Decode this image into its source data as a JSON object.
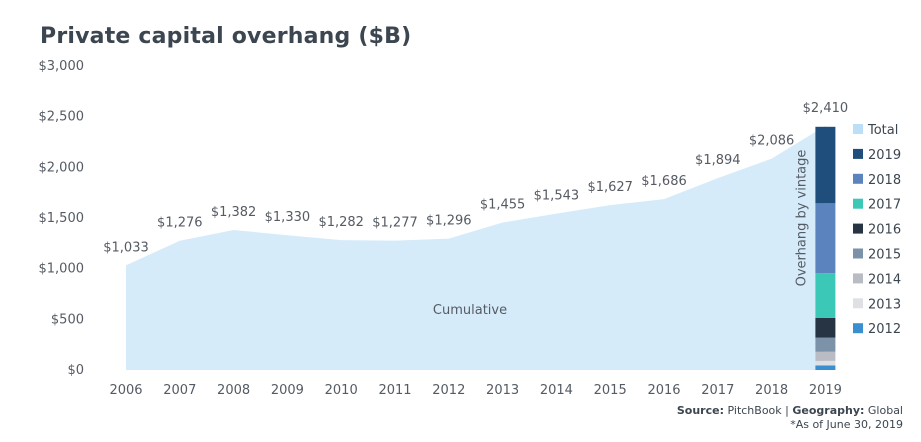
{
  "chart_data": {
    "type": "area",
    "title": "Private capital overhang ($B)",
    "x": [
      "2006",
      "2007",
      "2008",
      "2009",
      "2010",
      "2011",
      "2012",
      "2013",
      "2014",
      "2015",
      "2016",
      "2017",
      "2018",
      "2019"
    ],
    "series": [
      {
        "values": [
          1033,
          1276,
          1382,
          1330,
          1282,
          1277,
          1296,
          1455,
          1543,
          1627,
          1686,
          1894,
          2086,
          2410
        ],
        "data_labels": [
          "$1,033",
          "$1,276",
          "$1,382",
          "$1,330",
          "$1,282",
          "$1,277",
          "$1,296",
          "$1,455",
          "$1,543",
          "$1,627",
          "$1,686",
          "$1,894",
          "$2,086",
          "$2,410"
        ],
        "color": "#d6ebfa"
      }
    ],
    "area_annotation": "Cumulative",
    "y_ticks": [
      0,
      500,
      1000,
      1500,
      2000,
      2500,
      3000
    ],
    "y_tick_labels": [
      "$0",
      "$500",
      "$1,000",
      "$1,500",
      "$2,000",
      "$2,500",
      "$3,000"
    ],
    "ylim": [
      0,
      3000
    ],
    "grid": false,
    "stacked_bar": {
      "x": "2019",
      "annotation": "Overhang by vintage",
      "segments": [
        {
          "vintage": "2012",
          "value": 45,
          "color": "#3a8fd1"
        },
        {
          "vintage": "2013",
          "value": 45,
          "color": "#dfe0e3"
        },
        {
          "vintage": "2014",
          "value": 90,
          "color": "#b9bcc3"
        },
        {
          "vintage": "2015",
          "value": 140,
          "color": "#7c92a8"
        },
        {
          "vintage": "2016",
          "value": 195,
          "color": "#263444"
        },
        {
          "vintage": "2017",
          "value": 440,
          "color": "#3bc8b6"
        },
        {
          "vintage": "2018",
          "value": 690,
          "color": "#5b83bd"
        },
        {
          "vintage": "2019",
          "value": 755,
          "color": "#1f4e7d"
        }
      ]
    },
    "legend": {
      "position": "right",
      "entries": [
        {
          "label": "Total",
          "color": "#bcdff7"
        },
        {
          "label": "2019",
          "color": "#1f4e7d"
        },
        {
          "label": "2018",
          "color": "#5b83bd"
        },
        {
          "label": "2017",
          "color": "#3bc8b6"
        },
        {
          "label": "2016",
          "color": "#263444"
        },
        {
          "label": "2015",
          "color": "#7c92a8"
        },
        {
          "label": "2014",
          "color": "#b9bcc3"
        },
        {
          "label": "2013",
          "color": "#dfe0e3"
        },
        {
          "label": "2012",
          "color": "#3a8fd1"
        }
      ]
    }
  },
  "footer": {
    "source_label": "Source:",
    "source_value": " PitchBook | ",
    "geo_label": "Geography:",
    "geo_value": " Global",
    "note": "*As of June 30, 2019"
  }
}
